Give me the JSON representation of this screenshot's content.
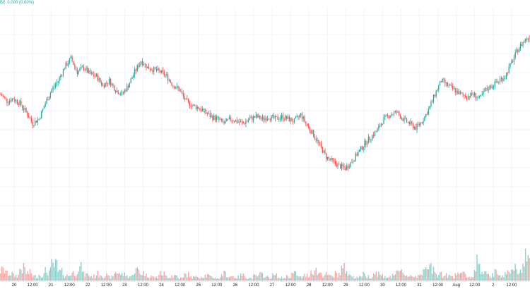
{
  "legend": {
    "symbol": "B0",
    "change": "0.000 (0.00%)"
  },
  "colors": {
    "up": "#26a69a",
    "down": "#ef5350",
    "grid": "#f0f3fa"
  },
  "chart_data": {
    "type": "candlestick",
    "ylim": [
      0,
      100
    ],
    "x_tick_labels": [
      "20",
      "12:00",
      "21",
      "12:00",
      "22",
      "12:00",
      "23",
      "12:00",
      "24",
      "12:00",
      "25",
      "12:00",
      "26",
      "12:00",
      "27",
      "12:00",
      "28",
      "12:00",
      "29",
      "12:00",
      "30",
      "12:00",
      "31",
      "12:00",
      "Aug",
      "12:00",
      "2",
      "12:00"
    ],
    "close_path": [
      68,
      65,
      66,
      64,
      60,
      55,
      57,
      64,
      70,
      74,
      80,
      84,
      78,
      80,
      77,
      76,
      72,
      74,
      70,
      68,
      72,
      78,
      83,
      80,
      79,
      78,
      76,
      72,
      70,
      65,
      63,
      62,
      60,
      58,
      57,
      55,
      57,
      56,
      55,
      57,
      58,
      57,
      58,
      57,
      58,
      57,
      56,
      59,
      54,
      50,
      45,
      40,
      38,
      36,
      35,
      38,
      42,
      46,
      49,
      52,
      57,
      59,
      60,
      57,
      55,
      53,
      56,
      61,
      68,
      74,
      72,
      70,
      68,
      67,
      68,
      66,
      70,
      72,
      74,
      76,
      82,
      88,
      92,
      94
    ],
    "volume": [
      12,
      8,
      6,
      14,
      9,
      5,
      7,
      11,
      18,
      10,
      6,
      9,
      15,
      7,
      5,
      8,
      6,
      4,
      10,
      7,
      5,
      12,
      9,
      6,
      4,
      8,
      5,
      6,
      3,
      7,
      4,
      5,
      6,
      4,
      3,
      8,
      5,
      4,
      6,
      3,
      5,
      7,
      4,
      6,
      3,
      5,
      8,
      4,
      6,
      12,
      9,
      7,
      5,
      8,
      14,
      6,
      4,
      7,
      5,
      9,
      6,
      4,
      8,
      10,
      6,
      5,
      9,
      12,
      16,
      8,
      6,
      5,
      10,
      7,
      4,
      22,
      8,
      6,
      9,
      7,
      11,
      14,
      18,
      25
    ]
  }
}
